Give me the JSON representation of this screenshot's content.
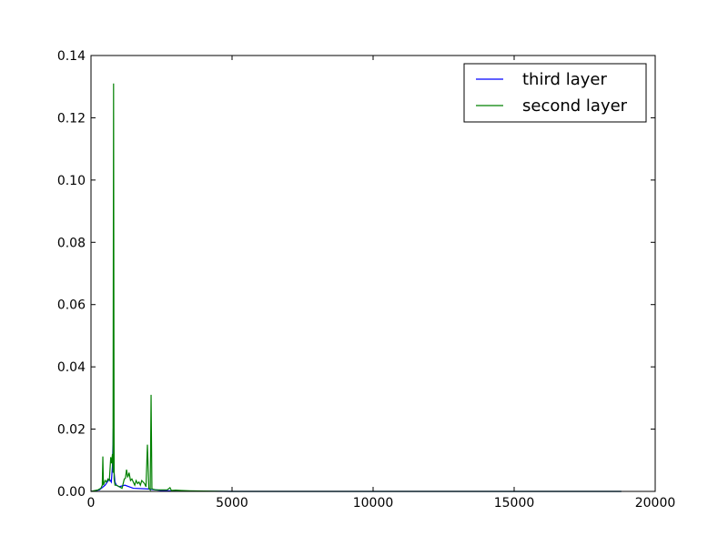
{
  "chart_data": {
    "type": "line",
    "title": "",
    "xlabel": "",
    "ylabel": "",
    "xlim": [
      0,
      20000
    ],
    "ylim": [
      0,
      0.14
    ],
    "x_ticks": [
      0,
      5000,
      10000,
      15000,
      20000
    ],
    "y_ticks": [
      0.0,
      0.02,
      0.04,
      0.06,
      0.08,
      0.1,
      0.12,
      0.14
    ],
    "x_tick_labels": [
      "0",
      "5000",
      "10000",
      "15000",
      "20000"
    ],
    "y_tick_labels": [
      "0.00",
      "0.02",
      "0.04",
      "0.06",
      "0.08",
      "0.10",
      "0.12",
      "0.14"
    ],
    "grid": false,
    "legend_position": "top-right",
    "series": [
      {
        "name": "third layer",
        "color": "#0000ff",
        "points": [
          [
            0,
            0
          ],
          [
            300,
            0.0005
          ],
          [
            500,
            0.002
          ],
          [
            650,
            0.004
          ],
          [
            720,
            0.003
          ],
          [
            760,
            0.008
          ],
          [
            790,
            0.02
          ],
          [
            800,
            0.021
          ],
          [
            820,
            0.006
          ],
          [
            850,
            0.003
          ],
          [
            900,
            0.002
          ],
          [
            1000,
            0.0015
          ],
          [
            1200,
            0.002
          ],
          [
            1500,
            0.001
          ],
          [
            2000,
            0.0008
          ],
          [
            2500,
            0.0003
          ],
          [
            3000,
            0.0001
          ],
          [
            5000,
            0.0
          ],
          [
            18800,
            0.0
          ]
        ]
      },
      {
        "name": "second layer",
        "color": "#008000",
        "points": [
          [
            0,
            0
          ],
          [
            250,
            0.0005
          ],
          [
            350,
            0.001
          ],
          [
            400,
            0.002
          ],
          [
            420,
            0.0112
          ],
          [
            440,
            0.002
          ],
          [
            500,
            0.0035
          ],
          [
            550,
            0.003
          ],
          [
            600,
            0.004
          ],
          [
            650,
            0.0035
          ],
          [
            700,
            0.011
          ],
          [
            730,
            0.009
          ],
          [
            760,
            0.012
          ],
          [
            780,
            0.006
          ],
          [
            800,
            0.131
          ],
          [
            820,
            0.004
          ],
          [
            850,
            0.002
          ],
          [
            900,
            0.002
          ],
          [
            1000,
            0.0015
          ],
          [
            1100,
            0.001
          ],
          [
            1180,
            0.004
          ],
          [
            1220,
            0.0042
          ],
          [
            1260,
            0.007
          ],
          [
            1300,
            0.0045
          ],
          [
            1350,
            0.006
          ],
          [
            1400,
            0.0035
          ],
          [
            1450,
            0.004
          ],
          [
            1500,
            0.003
          ],
          [
            1550,
            0.002
          ],
          [
            1600,
            0.0035
          ],
          [
            1650,
            0.0025
          ],
          [
            1700,
            0.003
          ],
          [
            1750,
            0.002
          ],
          [
            1800,
            0.0035
          ],
          [
            1850,
            0.003
          ],
          [
            1900,
            0.0025
          ],
          [
            1950,
            0.0015
          ],
          [
            2000,
            0.015
          ],
          [
            2050,
            0.001
          ],
          [
            2100,
            0.0005
          ],
          [
            2130,
            0.031
          ],
          [
            2160,
            0.0008
          ],
          [
            2300,
            0.0005
          ],
          [
            2500,
            0.0005
          ],
          [
            2700,
            0.0005
          ],
          [
            2800,
            0.0012
          ],
          [
            2850,
            0.0003
          ],
          [
            3000,
            0.0004
          ],
          [
            3200,
            0.0003
          ],
          [
            3500,
            0.0002
          ],
          [
            4000,
            0.0001
          ],
          [
            5000,
            0.0
          ],
          [
            10000,
            0.0
          ],
          [
            15000,
            0.0
          ],
          [
            18800,
            0.0
          ]
        ]
      }
    ]
  }
}
